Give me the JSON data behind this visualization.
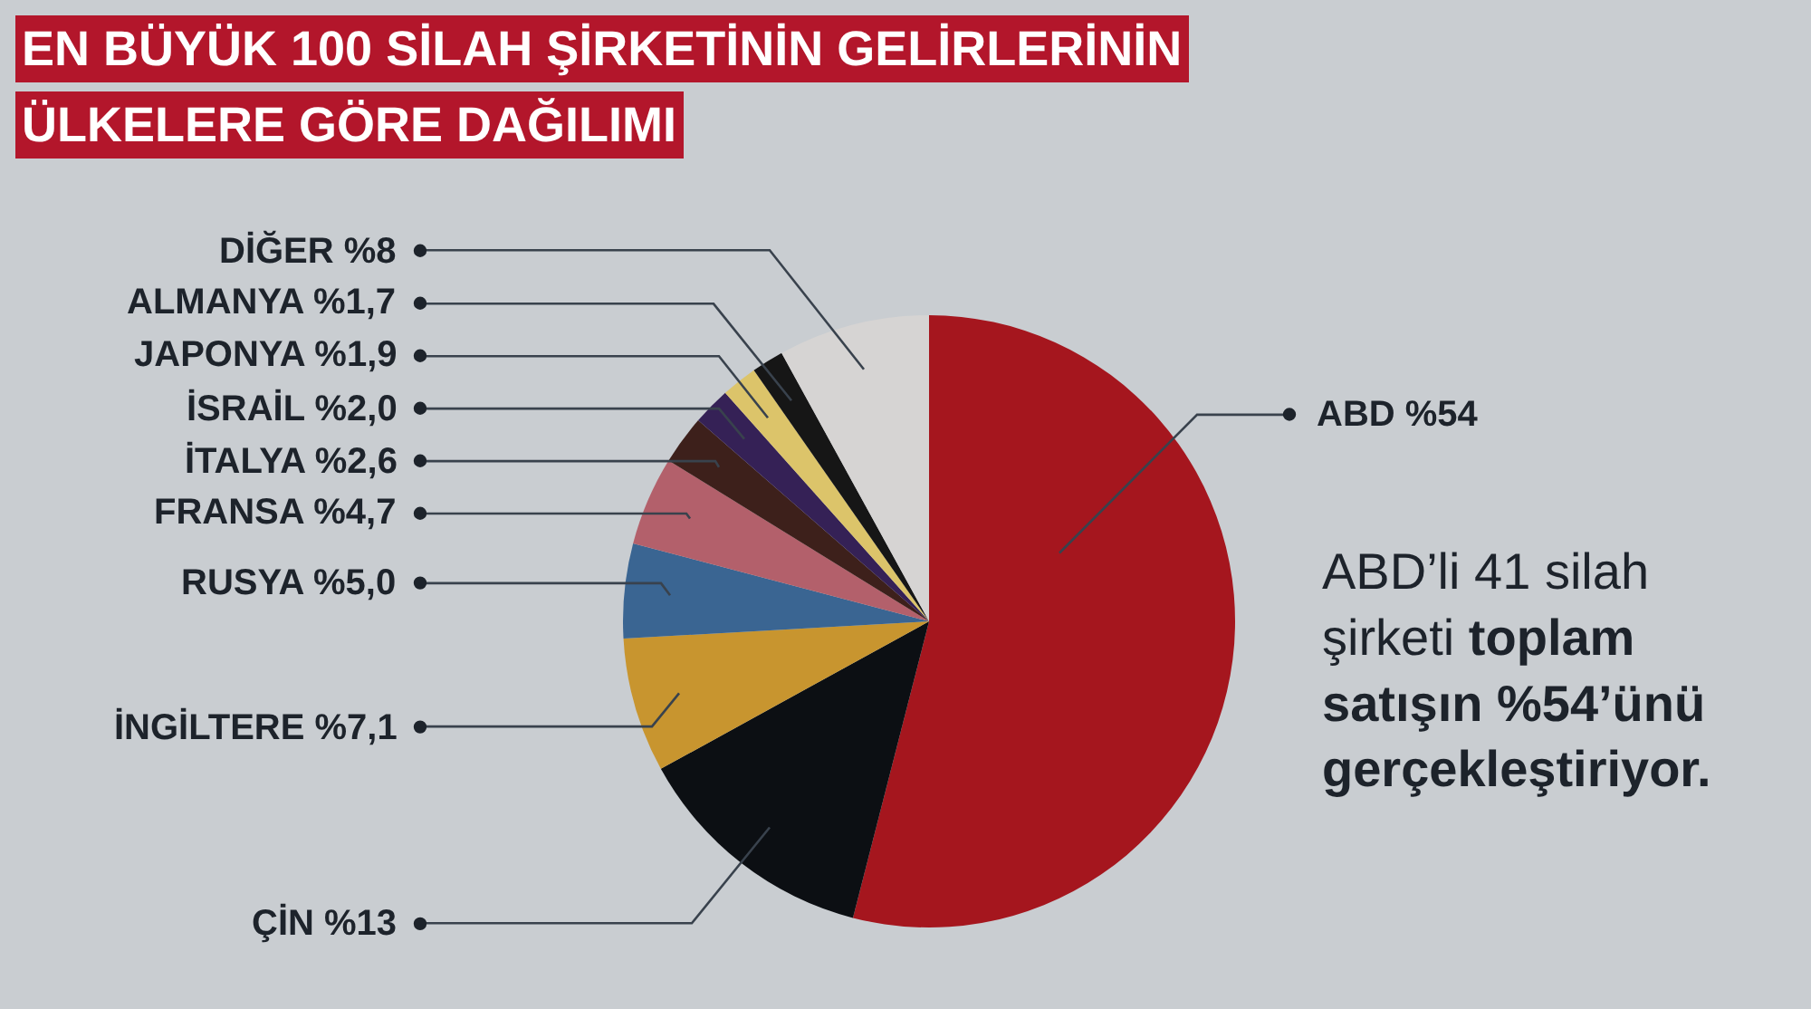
{
  "chart_data": {
    "type": "pie",
    "title": "EN BÜYÜK 100 SİLAH ŞİRKETİNİN GELİRLERİNİN ÜLKELERE GÖRE DAĞILIMI",
    "categories": [
      "ABD",
      "ÇİN",
      "İNGİLTERE",
      "RUSYA",
      "FRANSA",
      "İTALYA",
      "İSRAİL",
      "JAPONYA",
      "ALMANYA",
      "DİĞER"
    ],
    "values": [
      54,
      13,
      7.1,
      5.0,
      4.7,
      2.6,
      2.0,
      1.9,
      1.7,
      8
    ],
    "value_labels": [
      "%54",
      "%13",
      "%7,1",
      "%5,0",
      "%4,7",
      "%2,6",
      "%2,0",
      "%1,9",
      "%1,7",
      "%8"
    ],
    "colors": [
      "#a5161e",
      "#0c0f13",
      "#c8952f",
      "#3a6592",
      "#b3606b",
      "#3d201b",
      "#352156",
      "#dcc46a",
      "#161616",
      "#d6d4d3"
    ],
    "annotations": [
      "ABD’li 41 silah şirketi toplam satışın %54’ünü gerçekleştiriyor."
    ]
  }
}
